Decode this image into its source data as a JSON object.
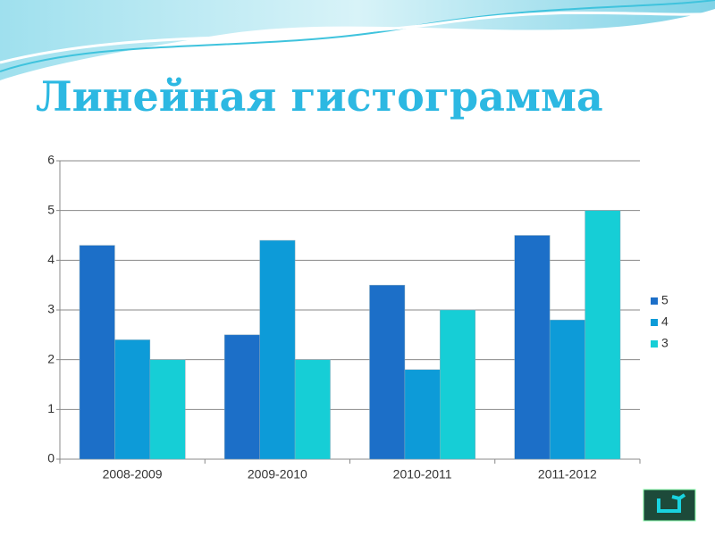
{
  "chart_data": {
    "type": "bar",
    "title": "Линейная гистограмма",
    "categories": [
      "2008-2009",
      "2009-2010",
      "2010-2011",
      "2011-2012"
    ],
    "series": [
      {
        "name": "5",
        "color": "#1c6fc8",
        "values": [
          4.3,
          2.5,
          3.5,
          4.5
        ]
      },
      {
        "name": "4",
        "color": "#0d9bd8",
        "values": [
          2.4,
          4.4,
          1.8,
          2.8
        ]
      },
      {
        "name": "3",
        "color": "#16ced6",
        "values": [
          2.0,
          2.0,
          3.0,
          5.0
        ]
      }
    ],
    "ylim": [
      0,
      6
    ],
    "yticks": [
      0,
      1,
      2,
      3,
      4,
      5,
      6
    ],
    "grid": true,
    "legend": "right"
  }
}
